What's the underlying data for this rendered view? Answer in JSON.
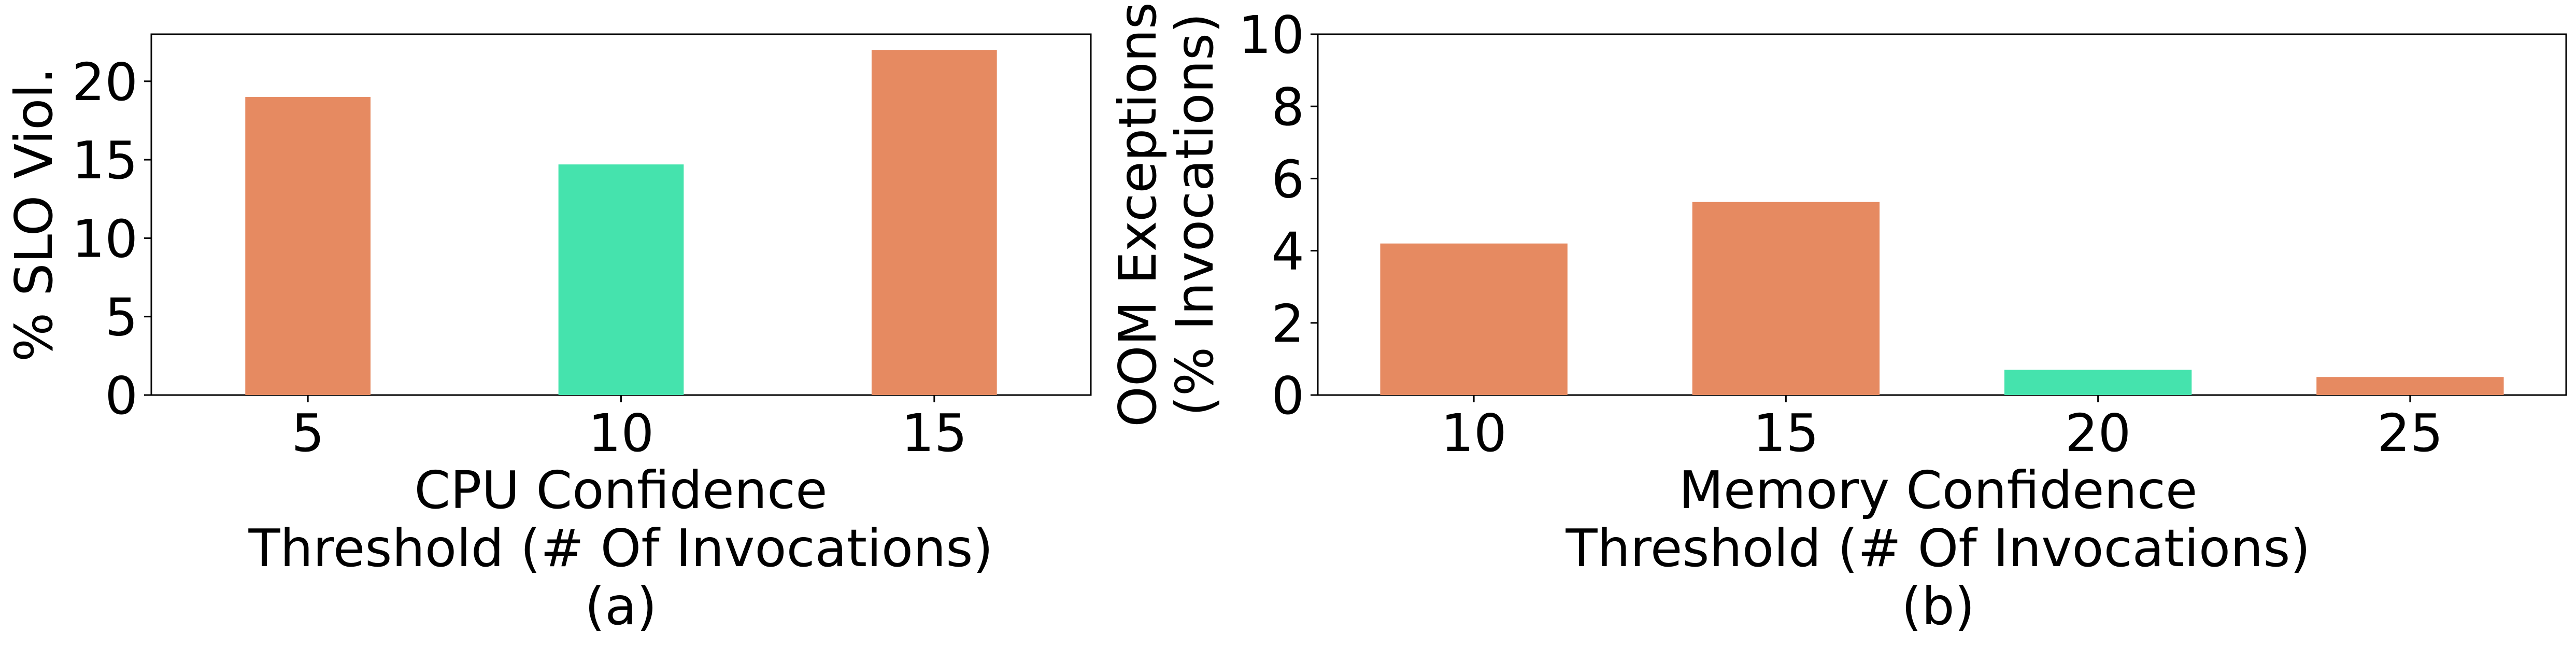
{
  "colors": {
    "default_bar": "#E68A61",
    "highlight_bar": "#45E3AD"
  },
  "chart_data": [
    {
      "type": "bar",
      "categories": [
        "5",
        "10",
        "15"
      ],
      "values": [
        19.0,
        14.7,
        22.0
      ],
      "highlight_index": 1,
      "ylabel": "% SLO Viol.",
      "xlabel_lines": [
        "CPU Confidence",
        "Threshold (# Of Invocations)",
        "(a)"
      ],
      "ylim": [
        0,
        23
      ],
      "yticks": [
        0,
        5,
        10,
        15,
        20
      ],
      "grid": false
    },
    {
      "type": "bar",
      "categories": [
        "10",
        "15",
        "20",
        "25"
      ],
      "values": [
        4.2,
        5.35,
        0.7,
        0.5
      ],
      "highlight_index": 2,
      "ylabel_lines": [
        "OOM Exceptions",
        "(% Invocations)"
      ],
      "xlabel_lines": [
        "Memory Confidence",
        "Threshold (# Of Invocations)",
        "(b)"
      ],
      "ylim": [
        0,
        10
      ],
      "yticks": [
        0,
        2,
        4,
        6,
        8,
        10
      ],
      "grid": false
    }
  ]
}
